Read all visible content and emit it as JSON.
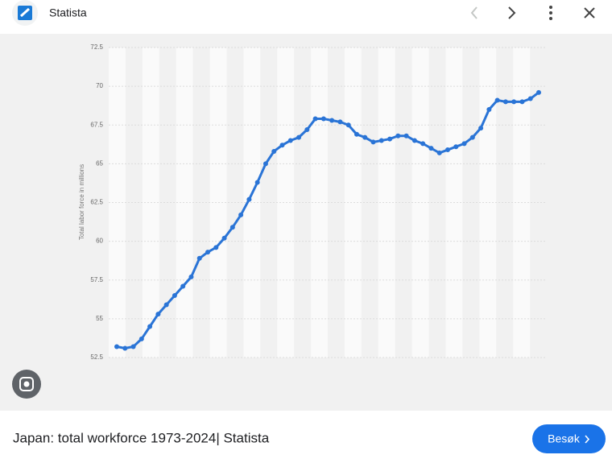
{
  "header": {
    "title": "Statista"
  },
  "chart_data": {
    "type": "line",
    "y_label": "Total labor force in millions",
    "series": [
      {
        "color": "#2a74d6",
        "values": [
          53.2,
          53.1,
          53.2,
          53.7,
          54.5,
          55.3,
          55.9,
          56.5,
          57.1,
          57.7,
          58.9,
          59.3,
          59.6,
          60.2,
          60.9,
          61.7,
          62.7,
          63.8,
          65.0,
          65.8,
          66.2,
          66.5,
          66.7,
          67.2,
          67.9,
          67.9,
          67.8,
          67.7,
          67.5,
          66.9,
          66.7,
          66.4,
          66.5,
          66.6,
          66.8,
          66.8,
          66.5,
          66.3,
          66.0,
          65.7,
          65.9,
          66.1,
          66.3,
          66.7,
          67.3,
          68.5,
          69.1,
          69.0,
          69.0,
          69.0,
          69.2,
          69.6
        ]
      }
    ],
    "ylim": [
      52.5,
      72.5
    ],
    "yticks": [
      52.5,
      55,
      57.5,
      60,
      62.5,
      65,
      67.5,
      70,
      72.5
    ],
    "grid": true
  },
  "caption": "Japan: total workforce 1973-2024| Statista",
  "button": "Besøk"
}
